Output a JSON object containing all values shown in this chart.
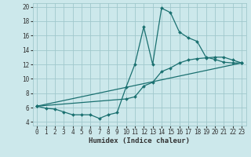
{
  "xlabel": "Humidex (Indice chaleur)",
  "bg_color": "#cce8eb",
  "grid_color": "#a0c8cc",
  "line_color": "#1a7070",
  "xlim": [
    -0.5,
    23.5
  ],
  "ylim": [
    3.5,
    20.5
  ],
  "xticks": [
    0,
    1,
    2,
    3,
    4,
    5,
    6,
    7,
    8,
    9,
    10,
    11,
    12,
    13,
    14,
    15,
    16,
    17,
    18,
    19,
    20,
    21,
    22,
    23
  ],
  "yticks": [
    4,
    6,
    8,
    10,
    12,
    14,
    16,
    18,
    20
  ],
  "line1_x": [
    0,
    1,
    2,
    3,
    4,
    5,
    6,
    7,
    8,
    9,
    10,
    11,
    12,
    13,
    14,
    15,
    16,
    17,
    18,
    19,
    20,
    21,
    22,
    23
  ],
  "line1_y": [
    6.2,
    5.9,
    5.8,
    5.4,
    5.0,
    5.0,
    5.0,
    4.5,
    5.0,
    5.3,
    8.8,
    12.0,
    17.2,
    12.0,
    19.8,
    19.2,
    16.5,
    15.7,
    15.2,
    13.0,
    12.7,
    12.3,
    12.2,
    12.2
  ],
  "line2_x": [
    0,
    10,
    11,
    12,
    13,
    14,
    15,
    16,
    17,
    18,
    19,
    20,
    21,
    22,
    23
  ],
  "line2_y": [
    6.2,
    7.2,
    7.5,
    9.0,
    9.5,
    11.0,
    11.5,
    12.2,
    12.6,
    12.8,
    12.9,
    13.0,
    13.0,
    12.6,
    12.2
  ],
  "line3_x": [
    0,
    23
  ],
  "line3_y": [
    6.2,
    12.2
  ],
  "xlabel_fontsize": 6.5,
  "tick_fontsize": 5.5,
  "lw": 0.9,
  "ms": 2.0
}
